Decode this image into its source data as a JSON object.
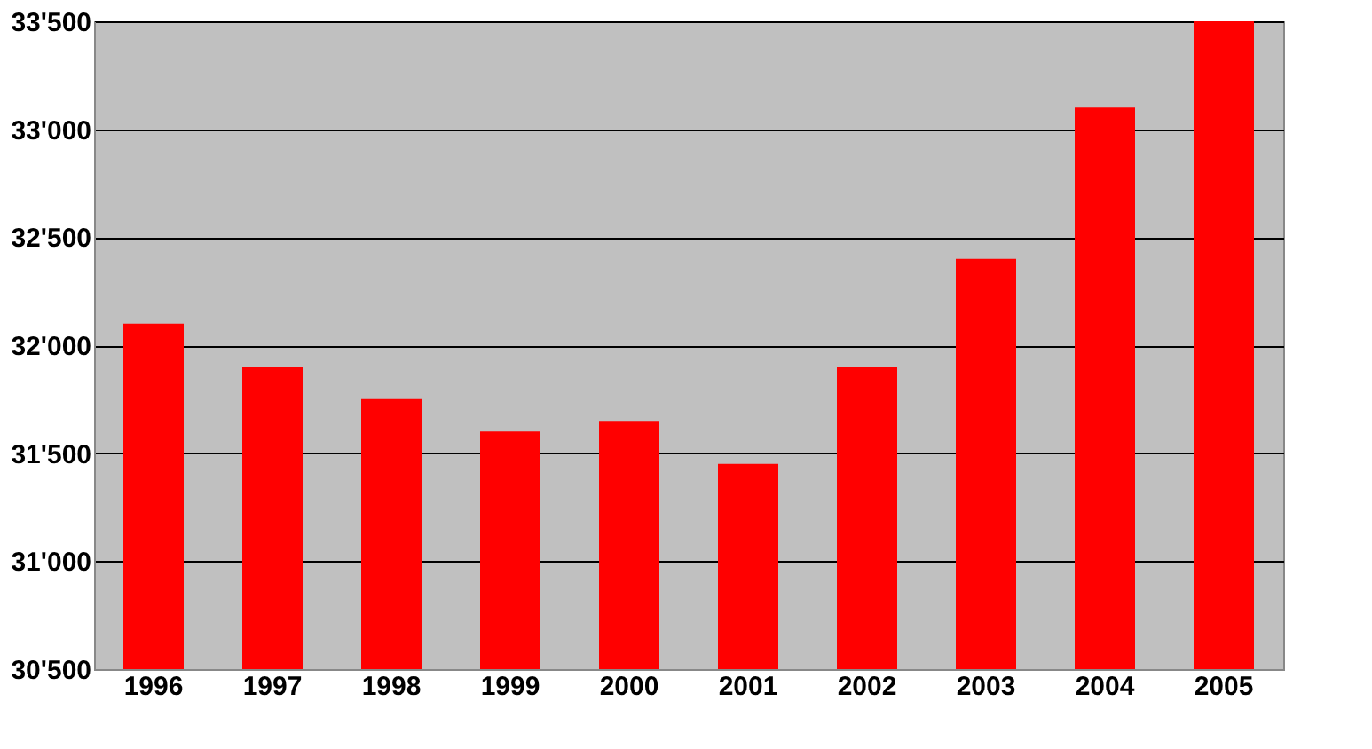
{
  "chart_data": {
    "type": "bar",
    "categories": [
      "1996",
      "1997",
      "1998",
      "1999",
      "2000",
      "2001",
      "2002",
      "2003",
      "2004",
      "2005"
    ],
    "values": [
      32100,
      31900,
      31750,
      31600,
      31650,
      31450,
      31900,
      32400,
      33100,
      33500
    ],
    "color": "#ff0000",
    "ylim": [
      30500,
      33500
    ],
    "yticks": [
      {
        "value": 30500,
        "label": "30'500"
      },
      {
        "value": 31000,
        "label": "31'000"
      },
      {
        "value": 31500,
        "label": "31'500"
      },
      {
        "value": 32000,
        "label": "32'000"
      },
      {
        "value": 32500,
        "label": "32'500"
      },
      {
        "value": 33000,
        "label": "33'000"
      },
      {
        "value": 33500,
        "label": "33'500"
      }
    ],
    "grid": "y"
  }
}
